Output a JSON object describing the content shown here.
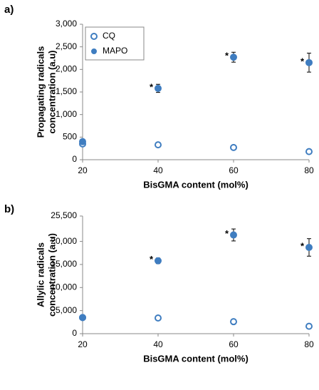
{
  "chart_data": [
    {
      "type": "scatter",
      "panel": "a)",
      "xlabel": "BisGMA content (mol%)",
      "ylabel": [
        "Propagating radicals",
        "concentration (a.u)"
      ],
      "x": [
        20,
        40,
        60,
        80
      ],
      "xlim": [
        20,
        80
      ],
      "xticks": [
        20,
        40,
        60,
        80
      ],
      "ylim": [
        0,
        3000
      ],
      "yticks": [
        0,
        {
          "value": 500,
          "label": "500"
        },
        {
          "value": 1000,
          "label": "1,000"
        },
        {
          "value": 1500,
          "label": "1,500"
        },
        {
          "value": 2000,
          "label": "2,000"
        },
        {
          "value": 2500,
          "label": "2,500"
        },
        {
          "value": 3000,
          "label": "3,000"
        }
      ],
      "legend": true,
      "series": [
        {
          "name": "CQ",
          "color": "#3f7dc0",
          "marker": "open",
          "values": [
            350,
            330,
            270,
            180
          ]
        },
        {
          "name": "MAPO",
          "color": "#3f7dc0",
          "marker": "filled",
          "values": [
            400,
            1580,
            2270,
            2150
          ],
          "errors": [
            null,
            90,
            110,
            210
          ],
          "marker_labels": [
            null,
            "*",
            "*",
            "*"
          ]
        }
      ]
    },
    {
      "type": "scatter",
      "panel": "b)",
      "xlabel": "BisGMA content (mol%)",
      "ylabel": [
        "Allylic radicals",
        "concentration (a.u)"
      ],
      "x": [
        20,
        40,
        60,
        80
      ],
      "xlim": [
        20,
        80
      ],
      "xticks": [
        20,
        40,
        60,
        80
      ],
      "ylim": [
        0,
        25500
      ],
      "yticks": [
        0,
        {
          "value": 5000,
          "label": "5,000"
        },
        {
          "value": 10000,
          "label": "10,000"
        },
        {
          "value": 15000,
          "label": "15,000"
        },
        {
          "value": 20000,
          "label": "20,000"
        },
        {
          "value": 25500,
          "label": "25,500"
        }
      ],
      "legend": false,
      "series": [
        {
          "color": "#3f7dc0",
          "marker": "open",
          "values": [
            3500,
            3400,
            2600,
            1600
          ]
        },
        {
          "color": "#3f7dc0",
          "marker": "filled",
          "values": [
            3500,
            15800,
            21400,
            18700
          ],
          "errors": [
            null,
            600,
            1300,
            1900
          ],
          "marker_labels": [
            null,
            "*",
            "*",
            "*"
          ]
        }
      ]
    }
  ]
}
